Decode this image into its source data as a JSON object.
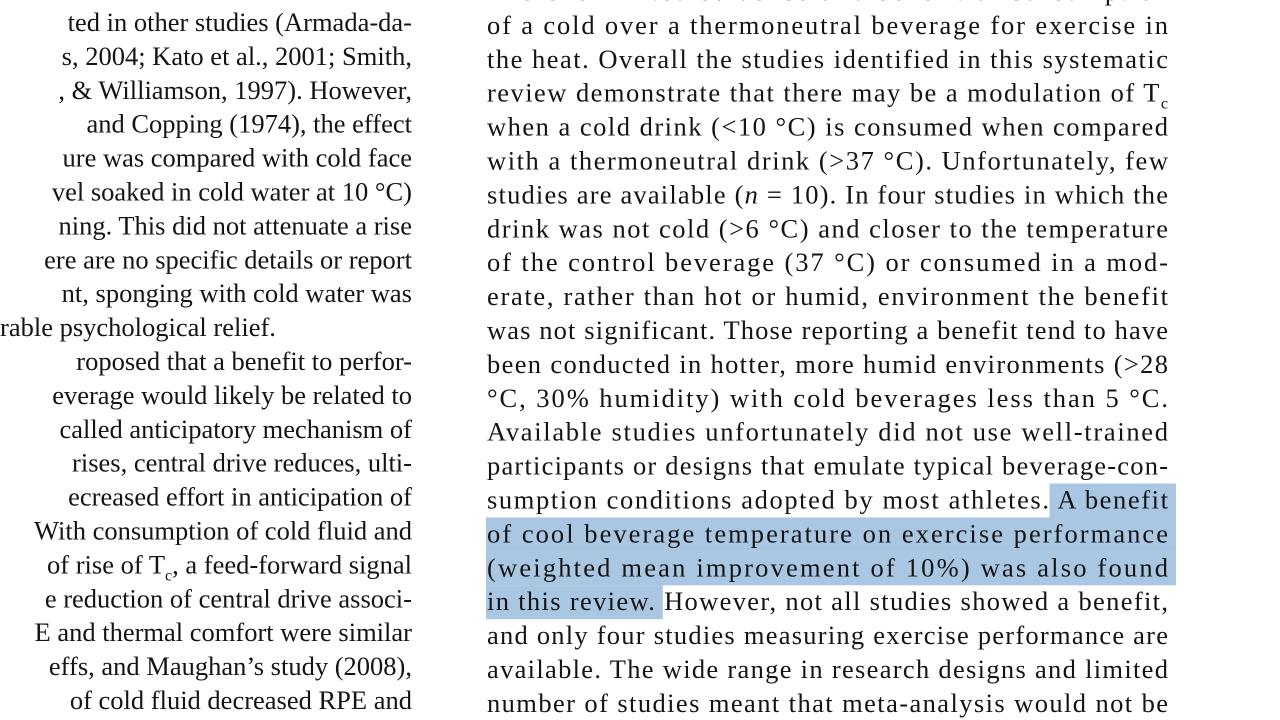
{
  "left_column": {
    "lines": [
      [
        "ted in other studies (Armada-da-"
      ],
      [
        "s, 2004; Kato et al., 2001; Smith,"
      ],
      [
        ", & Williamson, 1997). However,"
      ],
      [
        "and Copping (1974), the effect"
      ],
      [
        "ure was compared with cold face"
      ],
      [
        "vel soaked in cold water at 10 °C)"
      ],
      [
        "ning. This did not attenuate a rise"
      ],
      [
        "ere are no specific details or report"
      ],
      [
        "nt, sponging with cold water was"
      ],
      [
        "rable psychological relief."
      ],
      [
        "roposed that a benefit to perfor-"
      ],
      [
        "everage would likely be related to"
      ],
      [
        "called anticipatory mechanism of"
      ],
      [
        "rises, central drive reduces, ulti-"
      ],
      [
        "ecreased effort in anticipation of"
      ],
      [
        "With consumption of cold fluid and"
      ],
      [
        "of rise of T",
        {
          "sub": "c"
        },
        ", a feed-forward signal"
      ],
      [
        "e reduction of central drive associ-"
      ],
      [
        "E and thermal comfort were similar"
      ],
      [
        "effs, and Maughan’s study (2008),"
      ],
      [
        "of cold fluid decreased RPE and"
      ]
    ]
  },
  "right_column": {
    "lines": [
      [
        "There is limited evidence of a benefit of consumption"
      ],
      [
        "of a cold over a thermoneutral beverage for exercise in"
      ],
      [
        "the heat. Overall the studies identified in this systematic"
      ],
      [
        "review demonstrate that there may be a modulation of T",
        {
          "sub": "c"
        }
      ],
      [
        "when a cold drink (<10 °C) is consumed when compared"
      ],
      [
        "with a thermoneutral drink (>37 °C). Unfortunately, few"
      ],
      [
        "studies are available (",
        {
          "italic": "n"
        },
        " = 10). In four studies in which the"
      ],
      [
        "drink was not cold (>6 °C) and closer to the temperature"
      ],
      [
        "of the control beverage (37 °C) or consumed in a mod-"
      ],
      [
        "erate, rather than hot or humid, environment the benefit"
      ],
      [
        "was not significant. Those reporting a benefit tend to have"
      ],
      [
        "been conducted in hotter, more humid environments (>28"
      ],
      [
        "°C, 30% humidity) with cold beverages less than 5 °C."
      ],
      [
        "Available studies unfortunately did not use well-trained"
      ],
      [
        "participants or designs that emulate typical beverage-con-"
      ],
      [
        "sumption conditions adopted by most athletes.",
        {
          "highlight": " A benefit"
        }
      ],
      [
        {
          "highlight": "of cool beverage temperature on exercise performance"
        }
      ],
      [
        {
          "highlight": "(weighted mean improvement of 10%) was also found"
        }
      ],
      [
        {
          "highlight": "in this review."
        },
        " However, not all studies showed a benefit,"
      ],
      [
        "and only four studies measuring exercise performance are"
      ],
      [
        "available. The wide range in research designs and limited"
      ],
      [
        "number of studies meant that meta-analysis would not be"
      ]
    ]
  }
}
